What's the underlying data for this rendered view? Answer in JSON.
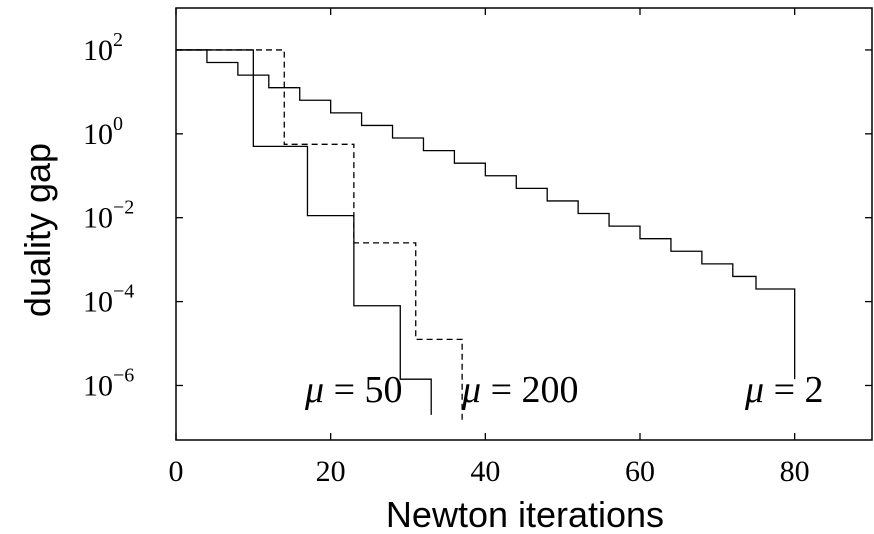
{
  "chart_data": {
    "type": "line",
    "xlabel": "Newton iterations",
    "ylabel": "duality gap",
    "xlim": [
      0,
      90
    ],
    "ylim_log10": [
      -7.3,
      3.0
    ],
    "y_scale": "log",
    "grid": false,
    "x_ticks": [
      {
        "value": 0,
        "label": "0"
      },
      {
        "value": 20,
        "label": "20"
      },
      {
        "value": 40,
        "label": "40"
      },
      {
        "value": 60,
        "label": "60"
      },
      {
        "value": 80,
        "label": "80"
      }
    ],
    "y_ticks": [
      {
        "value_log10": 2,
        "base": "10",
        "exp": "2"
      },
      {
        "value_log10": 0,
        "base": "10",
        "exp": "0"
      },
      {
        "value_log10": -2,
        "base": "10",
        "exp": "−2"
      },
      {
        "value_log10": -4,
        "base": "10",
        "exp": "−4"
      },
      {
        "value_log10": -6,
        "base": "10",
        "exp": "−6"
      }
    ],
    "series": [
      {
        "style": "solid",
        "step_x": [
          0,
          10,
          17,
          23,
          29,
          33
        ],
        "gap_log10": [
          2.0,
          -0.3,
          -1.95,
          -4.1,
          -5.85,
          -6.7
        ]
      },
      {
        "style": "dashed",
        "step_x": [
          0,
          14,
          23,
          31,
          37
        ],
        "gap_log10": [
          2.0,
          -0.25,
          -2.6,
          -4.9,
          -6.9
        ]
      },
      {
        "style": "solid",
        "step_x": [
          0,
          4,
          8,
          12,
          16,
          20,
          24,
          28,
          32,
          36,
          40,
          44,
          48,
          52,
          56,
          60,
          64,
          68,
          72,
          75,
          80
        ],
        "gap_log10": [
          2.0,
          1.7,
          1.4,
          1.1,
          0.8,
          0.5,
          0.2,
          -0.1,
          -0.4,
          -0.7,
          -1.0,
          -1.3,
          -1.6,
          -1.9,
          -2.2,
          -2.5,
          -2.8,
          -3.1,
          -3.4,
          -3.7,
          -5.85
        ]
      }
    ],
    "annotations": [
      {
        "mu": "μ",
        "text": " = 50"
      },
      {
        "mu": "μ",
        "text": " = 200"
      },
      {
        "mu": "μ",
        "text": " = 2"
      }
    ]
  }
}
